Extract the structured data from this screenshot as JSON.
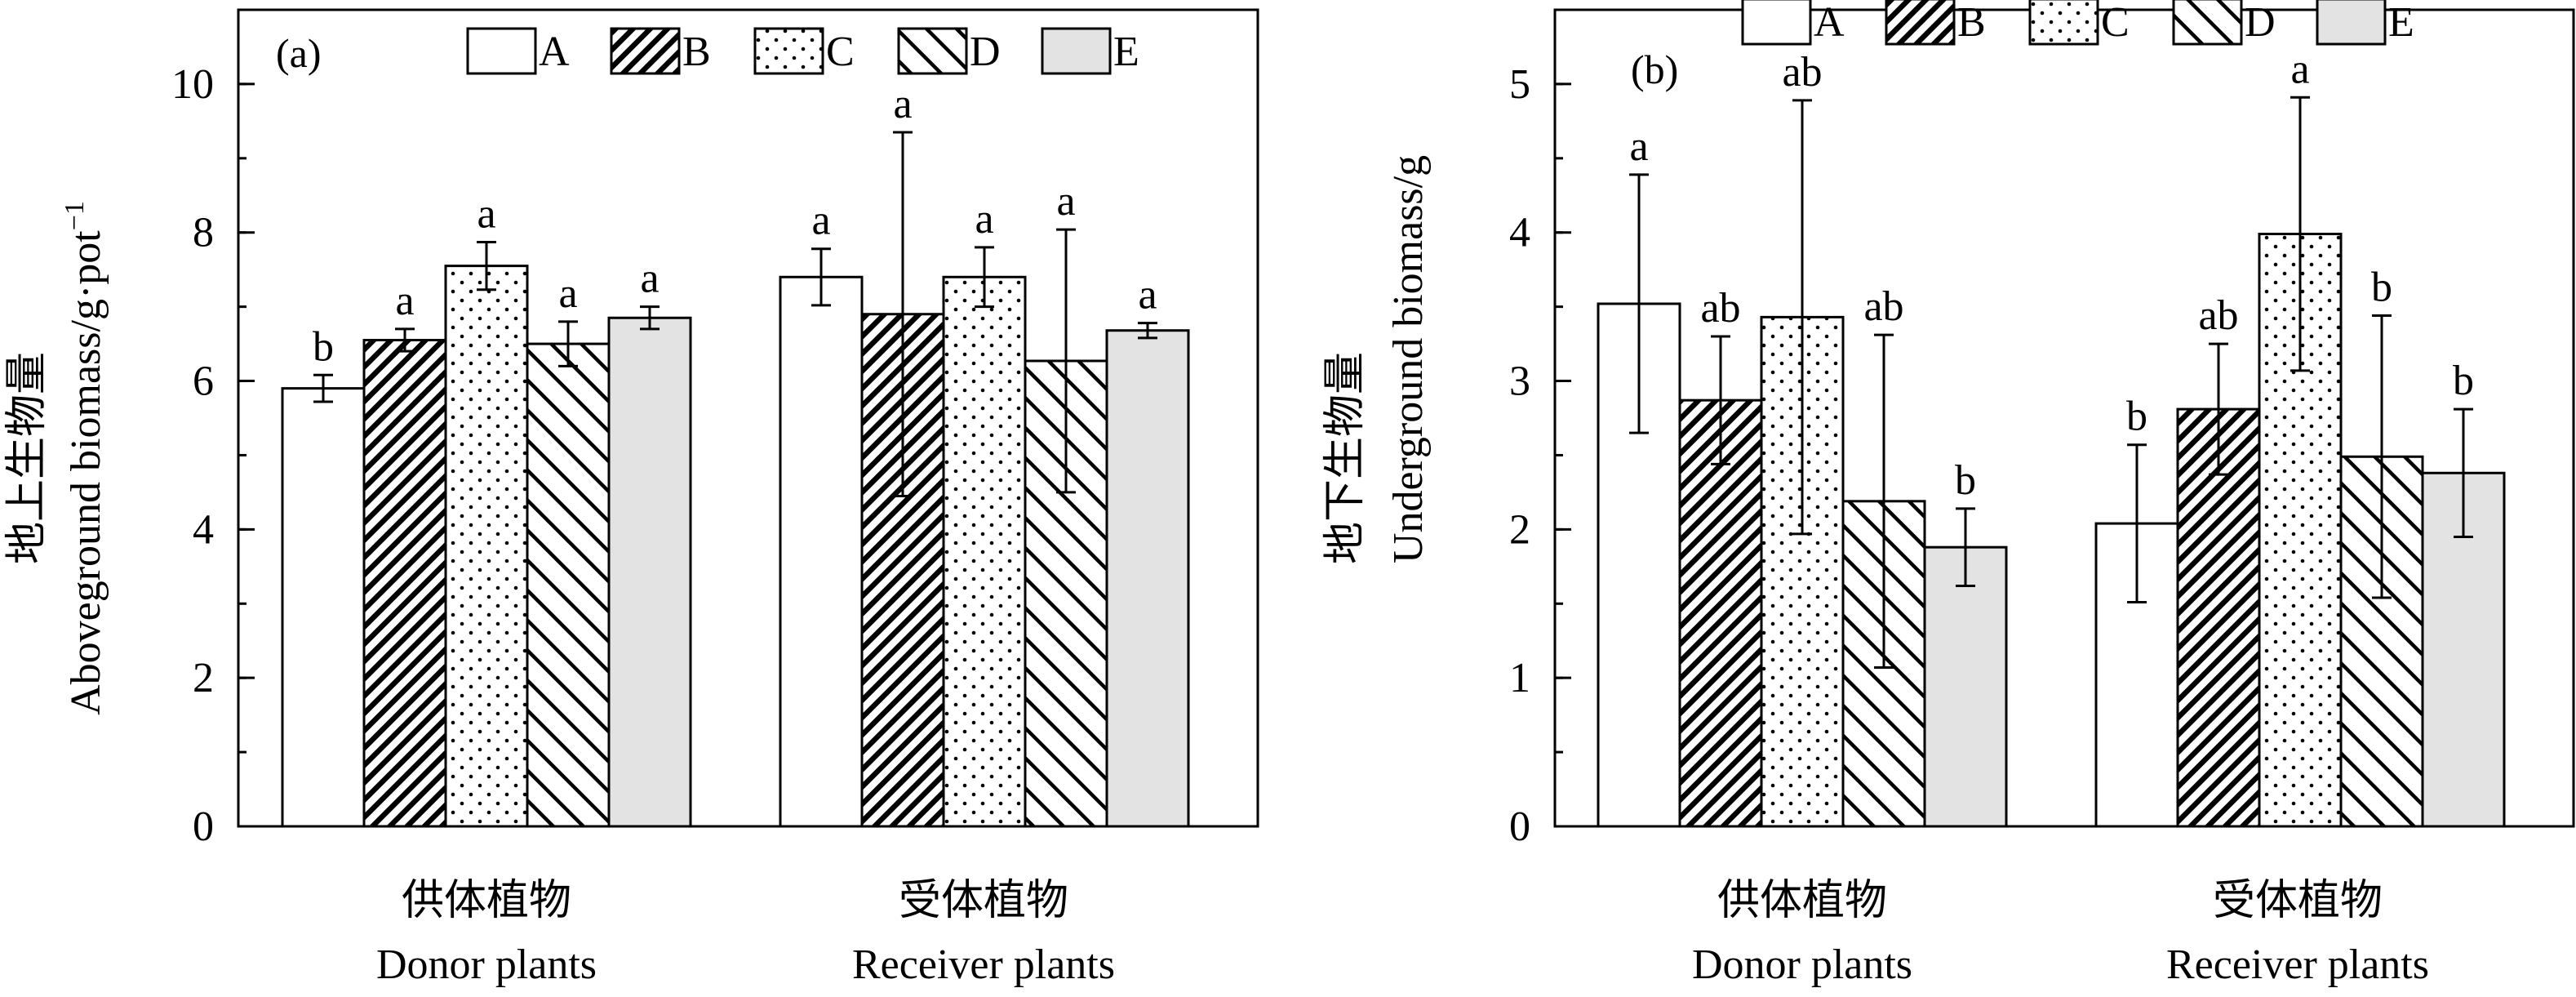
{
  "chart_data": [
    {
      "type": "bar",
      "panel_label": "(a)",
      "ylabel_cn": "地上生物量",
      "ylabel_en": "Aboveground biomass/g·pot",
      "ylabel_sup": "−1",
      "ylim": [
        0,
        11
      ],
      "yticks": [
        0,
        2,
        4,
        6,
        8,
        10
      ],
      "yminor": 1,
      "group_labels": [
        {
          "cn": "供体植物",
          "en": "Donor plants"
        },
        {
          "cn": "受体植物",
          "en": "Receiver plants"
        }
      ],
      "series": [
        {
          "name": "A",
          "pattern": "blank"
        },
        {
          "name": "B",
          "pattern": "dense-diag"
        },
        {
          "name": "C",
          "pattern": "dots"
        },
        {
          "name": "D",
          "pattern": "sparse-back-diag"
        },
        {
          "name": "E",
          "pattern": "gray"
        }
      ],
      "groups": [
        {
          "values": [
            5.9,
            6.55,
            7.55,
            6.5,
            6.85
          ],
          "errors": [
            0.18,
            0.15,
            0.32,
            0.3,
            0.15
          ],
          "letters": [
            "b",
            "a",
            "a",
            "a",
            "a"
          ]
        },
        {
          "values": [
            7.4,
            6.9,
            7.4,
            6.27,
            6.68
          ],
          "errors": [
            0.38,
            2.45,
            0.4,
            1.77,
            0.1
          ],
          "letters": [
            "a",
            "a",
            "a",
            "a",
            "a"
          ]
        }
      ],
      "legend_position": "top-center",
      "grid": false
    },
    {
      "type": "bar",
      "panel_label": "(b)",
      "ylabel_cn": "地下生物量",
      "ylabel_en": "Underground biomass/g",
      "ylim": [
        0,
        5.5
      ],
      "yticks": [
        0,
        1,
        2,
        3,
        4,
        5
      ],
      "yminor": 0.5,
      "group_labels": [
        {
          "cn": "供体植物",
          "en": "Donor plants"
        },
        {
          "cn": "受体植物",
          "en": "Receiver plants"
        }
      ],
      "series": [
        {
          "name": "A",
          "pattern": "blank"
        },
        {
          "name": "B",
          "pattern": "dense-diag"
        },
        {
          "name": "C",
          "pattern": "dots"
        },
        {
          "name": "D",
          "pattern": "sparse-back-diag"
        },
        {
          "name": "E",
          "pattern": "gray"
        }
      ],
      "groups": [
        {
          "values": [
            3.52,
            2.87,
            3.43,
            2.19,
            1.88
          ],
          "errors": [
            0.87,
            0.43,
            1.46,
            1.12,
            0.26
          ],
          "letters": [
            "a",
            "ab",
            "ab",
            "ab",
            "b"
          ]
        },
        {
          "values": [
            2.04,
            2.81,
            3.99,
            2.49,
            2.38
          ],
          "errors": [
            0.53,
            0.44,
            0.92,
            0.95,
            0.43
          ],
          "letters": [
            "b",
            "ab",
            "a",
            "b",
            "b"
          ]
        }
      ],
      "legend_position": "top-center",
      "grid": false
    }
  ]
}
